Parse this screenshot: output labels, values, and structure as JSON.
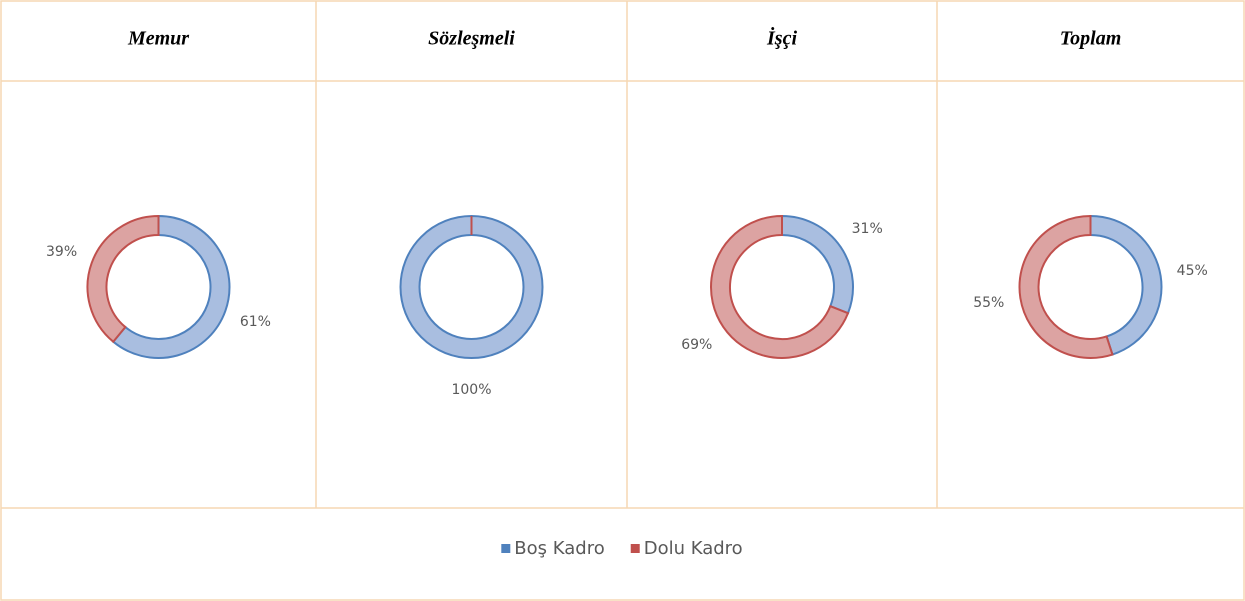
{
  "legend": {
    "categories": [
      "Boş Kadro",
      "Dolu Kadro"
    ],
    "colors": [
      "#4f81bd",
      "#c0504d"
    ],
    "fills": [
      "#a9bee0",
      "#dca3a2"
    ]
  },
  "chart_data": [
    {
      "type": "donut",
      "title": "Memur",
      "values": [
        61,
        39
      ],
      "value_labels": [
        "61%",
        "39%"
      ]
    },
    {
      "type": "donut",
      "title": "Sözleşmeli",
      "values": [
        100,
        0
      ],
      "value_labels": [
        "100%",
        null
      ]
    },
    {
      "type": "donut",
      "title": "İşçi",
      "values": [
        31,
        69
      ],
      "value_labels": [
        "31%",
        "69%"
      ]
    },
    {
      "type": "donut",
      "title": "Toplam",
      "values": [
        45,
        55
      ],
      "value_labels": [
        "45%",
        "55%"
      ]
    }
  ]
}
